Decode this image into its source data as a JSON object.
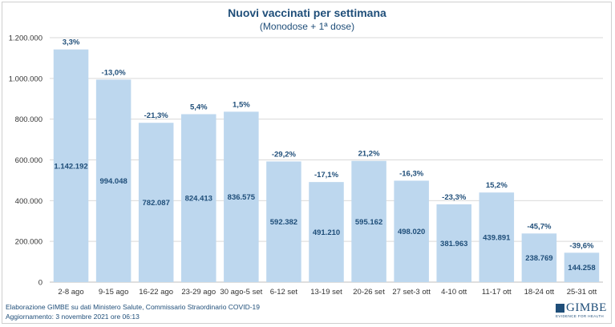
{
  "chart_data": {
    "type": "bar",
    "title": "Nuovi vaccinati per settimana",
    "subtitle": "(Monodose + 1ª dose)",
    "categories": [
      "2-8 ago",
      "9-15 ago",
      "16-22 ago",
      "23-29 ago",
      "30 ago-5 set",
      "6-12 set",
      "13-19 set",
      "20-26 set",
      "27 set-3 ott",
      "4-10 ott",
      "11-17 ott",
      "18-24 ott",
      "25-31 ott"
    ],
    "values": [
      1142192,
      994048,
      782087,
      824413,
      836575,
      592382,
      491210,
      595162,
      498020,
      381963,
      439891,
      238769,
      144258
    ],
    "value_labels": [
      "1.142.192",
      "994.048",
      "782.087",
      "824.413",
      "836.575",
      "592.382",
      "491.210",
      "595.162",
      "498.020",
      "381.963",
      "439.891",
      "238.769",
      "144.258"
    ],
    "pct_labels": [
      "3,3%",
      "-13,0%",
      "-21,3%",
      "5,4%",
      "1,5%",
      "-29,2%",
      "-17,1%",
      "21,2%",
      "-16,3%",
      "-23,3%",
      "15,2%",
      "-45,7%",
      "-39,6%"
    ],
    "yticks": [
      0,
      200000,
      400000,
      600000,
      800000,
      1000000,
      1200000
    ],
    "ytick_labels": [
      "0",
      "200.000",
      "400.000",
      "600.000",
      "800.000",
      "1.000.000",
      "1.200.000"
    ],
    "ylim": [
      0,
      1200000
    ],
    "grid": true,
    "colors": {
      "bar": "#bdd7ee",
      "text": "#1f4e79",
      "grid": "#d9d9d9"
    }
  },
  "footer": {
    "line1": "Elaborazione GIMBE su dati Ministero Salute, Commissario Straordinario  COVID-19",
    "line2": "Aggiornamento:  3 novembre  2021 ore 06:13"
  },
  "logo": {
    "name": "GIMBE",
    "tagline": "EVIDENCE FOR HEALTH"
  }
}
